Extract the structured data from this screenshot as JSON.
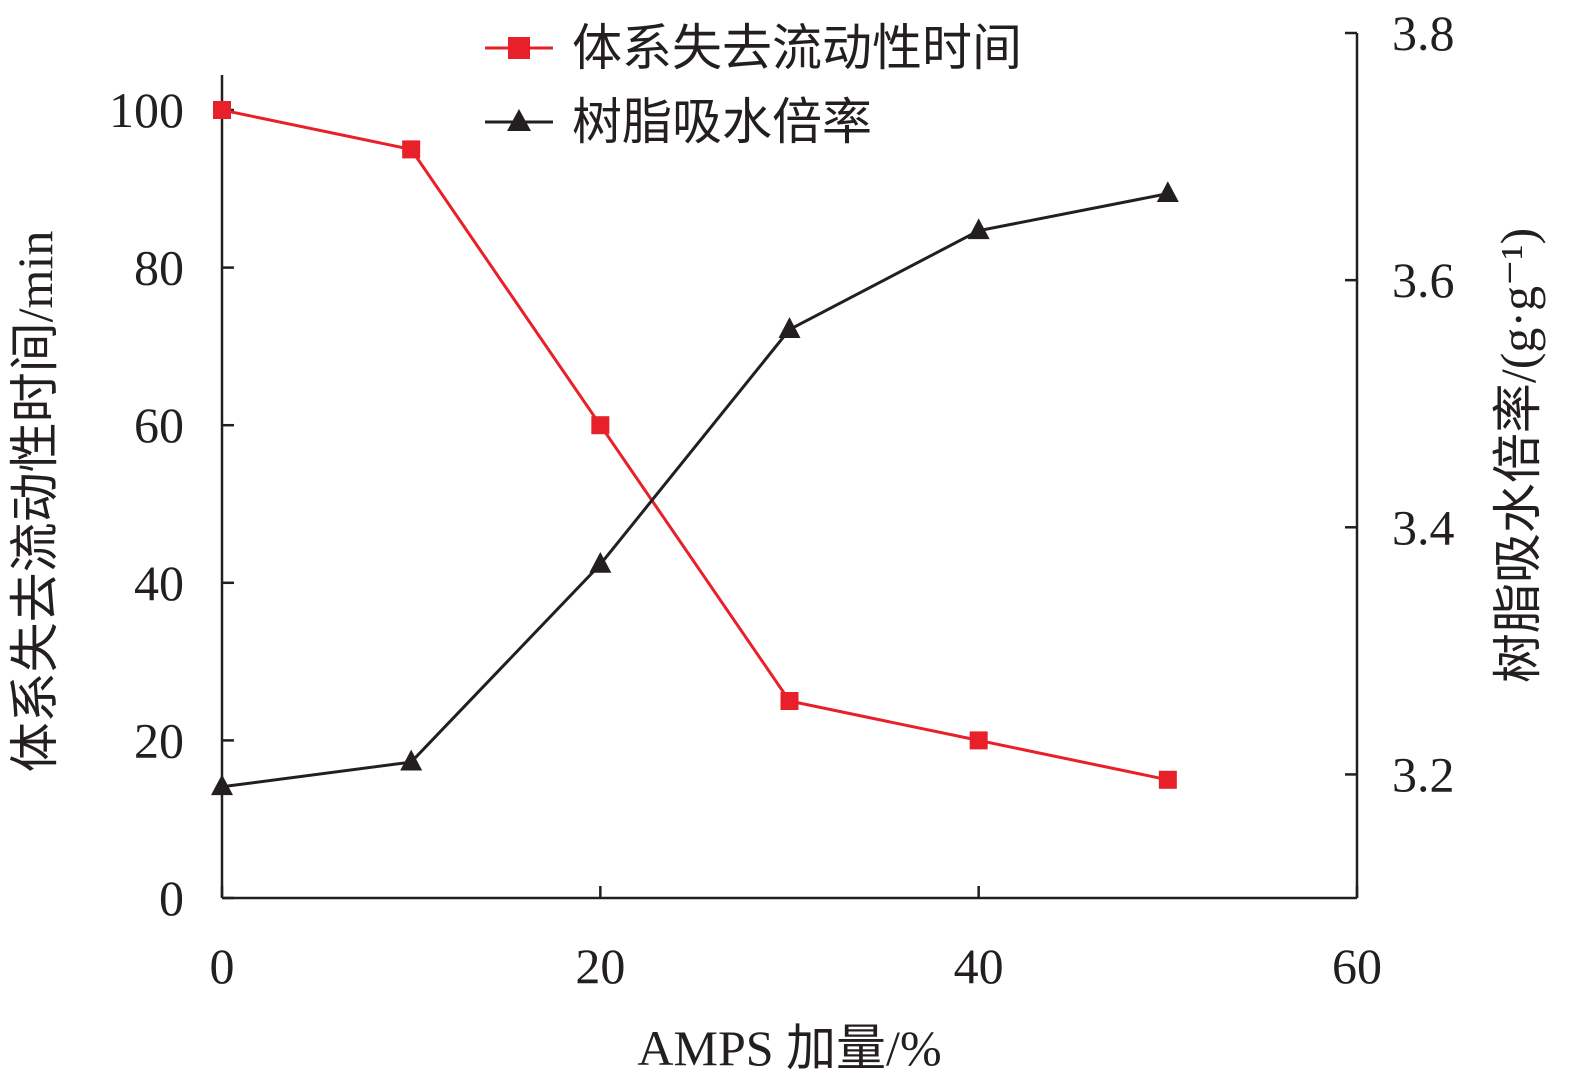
{
  "chart_data": {
    "type": "line",
    "xlabel": "AMPS 加量/%",
    "ylabel_left": "体系失去流动性时间/min",
    "ylabel_right": "树脂吸水倍率/(g·g⁻¹)",
    "xlim": [
      0,
      60
    ],
    "ylim_left": [
      0,
      100
    ],
    "ylim_right": [
      3.1,
      3.8
    ],
    "x_ticks": [
      0,
      20,
      40,
      60
    ],
    "y_left_ticks": [
      0,
      20,
      40,
      60,
      80,
      100
    ],
    "y_right_ticks": [
      3.2,
      3.4,
      3.6,
      3.8
    ],
    "x_tick_labels": [
      "0",
      "20",
      "40",
      "60"
    ],
    "y_left_tick_labels": [
      "0",
      "20",
      "40",
      "60",
      "80",
      "100"
    ],
    "y_right_tick_labels": [
      "3.2",
      "3.4",
      "3.6",
      "3.8"
    ],
    "grid": false,
    "legend_position": "top-center",
    "series": [
      {
        "name": "体系失去流动性时间",
        "axis": "left",
        "marker": "square",
        "color": "#e8202a",
        "x": [
          0,
          10,
          20,
          30,
          40,
          50
        ],
        "y": [
          100,
          95,
          60,
          25,
          20,
          15
        ]
      },
      {
        "name": "树脂吸水倍率",
        "axis": "right",
        "marker": "triangle",
        "color": "#231f20",
        "x": [
          0,
          10,
          20,
          30,
          40,
          50
        ],
        "y": [
          3.19,
          3.21,
          3.37,
          3.56,
          3.64,
          3.67
        ]
      }
    ]
  }
}
